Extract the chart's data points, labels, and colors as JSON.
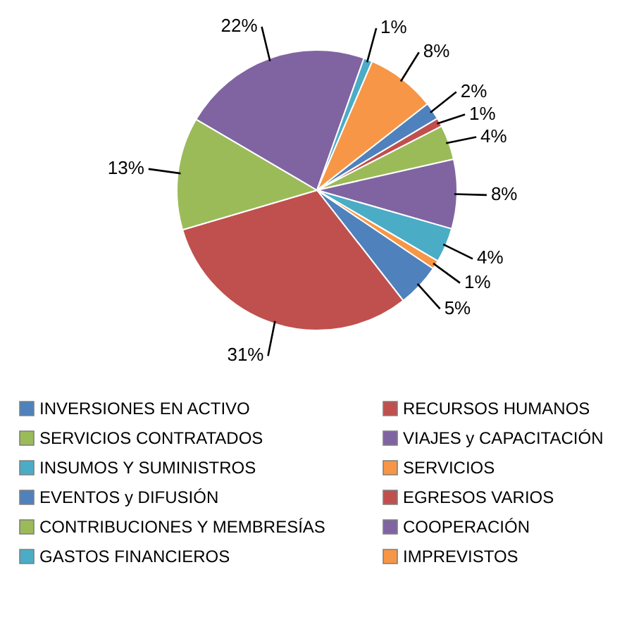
{
  "chart_data": {
    "type": "pie",
    "categories": [
      "INVERSIONES EN ACTIVO",
      "RECURSOS HUMANOS",
      "SERVICIOS CONTRATADOS",
      "VIAJES y CAPACITACIÓN",
      "INSUMOS Y SUMINISTROS",
      "SERVICIOS",
      "EVENTOS y DIFUSIÓN",
      "EGRESOS VARIOS",
      "CONTRIBUCIONES Y MEMBRESÍAS",
      "COOPERACIÓN",
      "GASTOS FINANCIEROS",
      "IMPREVISTOS"
    ],
    "values": [
      5,
      31,
      13,
      22,
      1,
      8,
      2,
      1,
      4,
      8,
      4,
      1
    ],
    "colors": [
      "#4f81bd",
      "#c0504d",
      "#9bbb59",
      "#8064a2",
      "#4bacc6",
      "#f79646",
      "#4f81bd",
      "#c0504d",
      "#9bbb59",
      "#8064a2",
      "#4bacc6",
      "#f79646"
    ],
    "value_labels": [
      "5%",
      "31%",
      "13%",
      "22%",
      "1%",
      "8%",
      "2%",
      "1%",
      "4%",
      "8%",
      "4%",
      "1%"
    ],
    "legend": "bottom"
  }
}
